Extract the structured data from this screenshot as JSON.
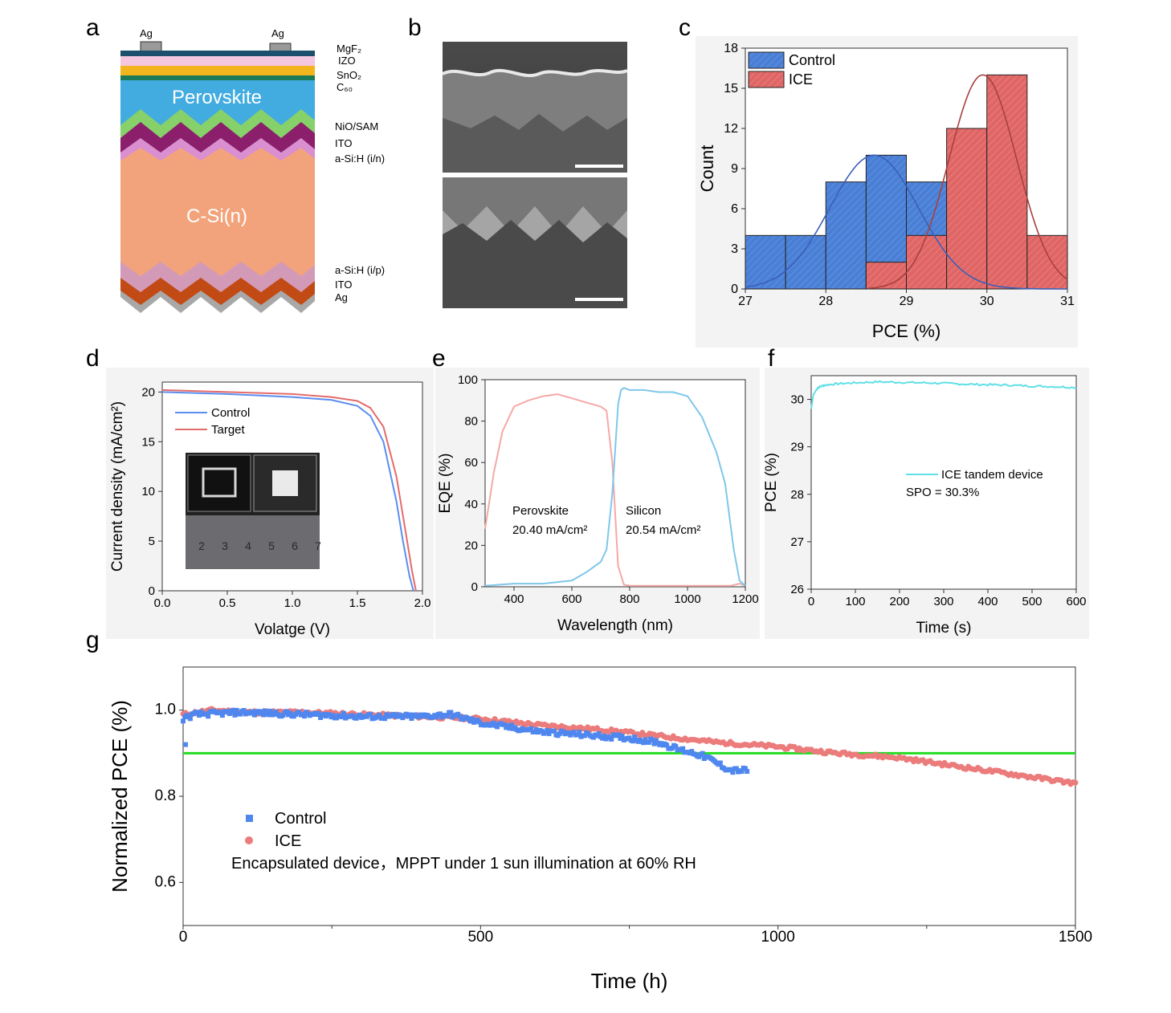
{
  "panels": {
    "a": "a",
    "b": "b",
    "c": "c",
    "d": "d",
    "e": "e",
    "f": "f",
    "g": "g"
  },
  "panel_a": {
    "ag_left": "Ag",
    "ag_right": "Ag",
    "perovskite": "Perovskite",
    "csi": "C-Si(n)",
    "labels": {
      "mgf2": "MgF₂",
      "izo": "IZO",
      "sno2": "SnO₂",
      "c60": "C₆₀",
      "niosam": "NiO/SAM",
      "ito_top": "ITO",
      "asih_in": "a-Si:H (i/n)",
      "asih_ip": "a-Si:H (i/p)",
      "ito_bottom": "ITO",
      "ag_bottom": "Ag"
    },
    "colors": {
      "mgf2": "#1b4f6b",
      "izo": "#f5c6e0",
      "sno2": "#f2b51d",
      "c60": "#1b7a5a",
      "perovskite": "#42ace0",
      "niosam": "#86d16a",
      "ito": "#8b1f6b",
      "asih": "#d98fd0",
      "csi": "#f2a37c",
      "asih_bottom": "#d39ab8",
      "ito_bottom": "#c24a14",
      "ag": "#a8a8a8"
    }
  },
  "chart_data": [
    {
      "panel": "c",
      "type": "bar",
      "xlabel": "PCE (%)",
      "ylabel": "Count",
      "xlim": [
        27,
        31
      ],
      "ylim": [
        0,
        18
      ],
      "x_ticks": [
        "27",
        "28",
        "29",
        "30",
        "31"
      ],
      "y_ticks": [
        "0",
        "3",
        "6",
        "9",
        "12",
        "15",
        "18"
      ],
      "bin_width": 0.5,
      "legend_position": "top-left",
      "series": [
        {
          "name": "Control",
          "color": "#4a7fd6",
          "bin_starts": [
            27.0,
            27.5,
            28.0,
            28.5,
            29.0
          ],
          "counts": [
            4,
            4,
            8,
            10,
            8
          ],
          "fit_mean": 28.6,
          "fit_sd": 0.55,
          "fit_peak": 10
        },
        {
          "name": "ICE",
          "color": "#e06666",
          "bin_starts": [
            28.5,
            29.0,
            29.5,
            30.0,
            30.5
          ],
          "counts": [
            2,
            4,
            12,
            16,
            4
          ],
          "fit_mean": 29.95,
          "fit_sd": 0.42,
          "fit_peak": 16
        }
      ]
    },
    {
      "panel": "d",
      "type": "line",
      "xlabel": "Volatge (V)",
      "ylabel": "Current density (mA/cm²)",
      "xlim": [
        0,
        2.0
      ],
      "ylim": [
        0,
        21
      ],
      "x_ticks": [
        "0.0",
        "0.5",
        "1.0",
        "1.5",
        "2.0"
      ],
      "y_ticks": [
        "0",
        "5",
        "10",
        "15",
        "20"
      ],
      "legend_position": "top-left",
      "series": [
        {
          "name": "Control",
          "color": "#5b8def",
          "x": [
            0,
            0.5,
            1.0,
            1.3,
            1.5,
            1.6,
            1.7,
            1.8,
            1.85,
            1.9,
            1.93
          ],
          "y": [
            20.0,
            19.8,
            19.5,
            19.2,
            18.6,
            17.6,
            15.0,
            9.0,
            5.0,
            1.5,
            0
          ]
        },
        {
          "name": "Target",
          "color": "#e56b6b",
          "x": [
            0,
            0.5,
            1.0,
            1.3,
            1.5,
            1.6,
            1.7,
            1.8,
            1.87,
            1.92,
            1.95
          ],
          "y": [
            20.2,
            20.0,
            19.8,
            19.5,
            19.1,
            18.4,
            16.5,
            11.5,
            6.0,
            2.0,
            0
          ]
        }
      ],
      "inset_ruler_numbers": [
        "2",
        "3",
        "4",
        "5",
        "6",
        "7"
      ]
    },
    {
      "panel": "e",
      "type": "line",
      "xlabel": "Wavelength (nm)",
      "ylabel": "EQE (%)",
      "xlim": [
        300,
        1200
      ],
      "ylim": [
        0,
        100
      ],
      "x_ticks": [
        "400",
        "600",
        "800",
        "1000",
        "1200"
      ],
      "y_ticks": [
        "0",
        "20",
        "40",
        "60",
        "80",
        "100"
      ],
      "annotations": {
        "perovskite_name": "Perovskite",
        "perovskite_jsc": "20.40 mA/cm²",
        "silicon_name": "Silicon",
        "silicon_jsc": "20.54 mA/cm²"
      },
      "series": [
        {
          "name": "Perovskite",
          "color": "#f4a9a6",
          "x": [
            300,
            330,
            360,
            400,
            450,
            500,
            550,
            600,
            650,
            700,
            720,
            740,
            760,
            780,
            800,
            900,
            1000,
            1100,
            1150,
            1180,
            1200
          ],
          "y": [
            28,
            55,
            75,
            87,
            90,
            92,
            93,
            91,
            89,
            87,
            85,
            60,
            10,
            1,
            0.5,
            0.5,
            0.5,
            0.5,
            0.5,
            1.5,
            0.5
          ]
        },
        {
          "name": "Silicon",
          "color": "#7fc7ea",
          "x": [
            300,
            400,
            500,
            600,
            650,
            700,
            720,
            740,
            760,
            770,
            780,
            800,
            850,
            900,
            950,
            1000,
            1050,
            1100,
            1130,
            1160,
            1180,
            1200
          ],
          "y": [
            0.5,
            1.5,
            1.5,
            3,
            7,
            12,
            18,
            45,
            88,
            95,
            96,
            95,
            95,
            94,
            94,
            92,
            82,
            65,
            50,
            18,
            3,
            0.5
          ]
        }
      ]
    },
    {
      "panel": "f",
      "type": "line",
      "xlabel": "Time (s)",
      "ylabel": "PCE (%)",
      "xlim": [
        0,
        600
      ],
      "ylim": [
        26,
        30.5
      ],
      "x_ticks": [
        "0",
        "100",
        "200",
        "300",
        "400",
        "500",
        "600"
      ],
      "y_ticks": [
        "26",
        "27",
        "28",
        "29",
        "30"
      ],
      "series": [
        {
          "name": "ICE tandem device",
          "color": "#5fe0e6",
          "x": [
            0,
            5,
            15,
            30,
            60,
            100,
            150,
            200,
            250,
            300,
            350,
            400,
            450,
            500,
            550,
            600
          ],
          "y": [
            29.8,
            30.1,
            30.25,
            30.3,
            30.33,
            30.35,
            30.37,
            30.36,
            30.35,
            30.34,
            30.32,
            30.31,
            30.3,
            30.28,
            30.27,
            30.25
          ]
        }
      ],
      "annotation": "SPO = 30.3%"
    },
    {
      "panel": "g",
      "type": "scatter",
      "xlabel": "Time (h)",
      "ylabel": "Normalized PCE (%)",
      "xlim": [
        0,
        1500
      ],
      "ylim": [
        0.5,
        1.1
      ],
      "x_ticks": [
        "0",
        "500",
        "1000",
        "1500"
      ],
      "y_ticks": [
        "0.6",
        "0.8",
        "1.0"
      ],
      "reference_line": {
        "y": 0.9,
        "color": "#22dd22"
      },
      "annotation": "Encapsulated device，MPPT under 1 sun illumination at 60% RH",
      "series": [
        {
          "name": "Control",
          "color": "#4f87ef",
          "x": [
            0,
            20,
            100,
            200,
            300,
            400,
            450,
            500,
            550,
            600,
            650,
            700,
            750,
            800,
            830,
            860,
            880,
            900,
            920,
            950
          ],
          "y": [
            0.98,
            0.99,
            0.995,
            0.99,
            0.985,
            0.985,
            0.99,
            0.97,
            0.96,
            0.95,
            0.945,
            0.94,
            0.935,
            0.925,
            0.91,
            0.9,
            0.89,
            0.875,
            0.86,
            0.86
          ]
        },
        {
          "name": "ICE",
          "color": "#ec7b7b",
          "x": [
            0,
            50,
            100,
            200,
            300,
            400,
            500,
            600,
            700,
            800,
            900,
            1000,
            1100,
            1200,
            1300,
            1400,
            1500
          ],
          "y": [
            0.99,
            1.0,
            0.995,
            0.995,
            0.99,
            0.985,
            0.98,
            0.965,
            0.955,
            0.94,
            0.925,
            0.915,
            0.9,
            0.89,
            0.87,
            0.85,
            0.83
          ]
        }
      ]
    }
  ]
}
